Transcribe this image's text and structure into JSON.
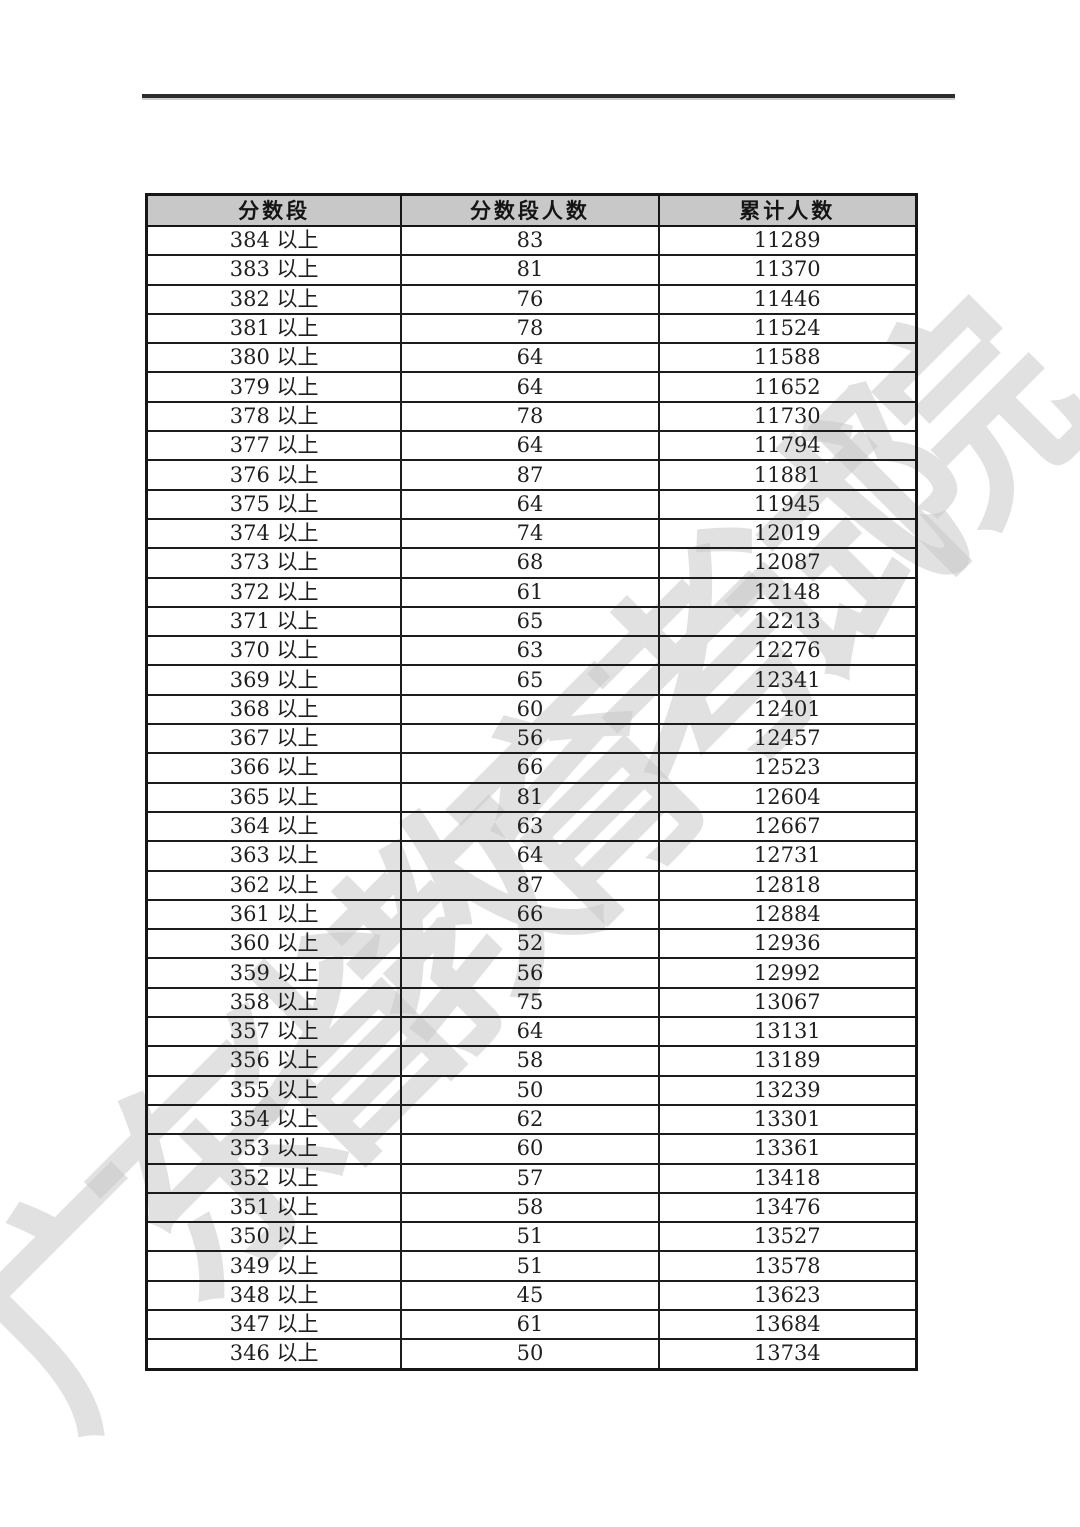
{
  "page": {
    "watermark": "广东省教育考试院"
  },
  "colors": {
    "header_bg": "#c8c8c8",
    "table_border": "#1c1c1c",
    "top_rule": "#2d2d2d",
    "watermark": "#c8c8c8"
  },
  "table": {
    "headers": [
      "分数段",
      "分数段人数",
      "累计人数"
    ],
    "rows": [
      [
        "384 以上",
        "83",
        "11289"
      ],
      [
        "383 以上",
        "81",
        "11370"
      ],
      [
        "382 以上",
        "76",
        "11446"
      ],
      [
        "381 以上",
        "78",
        "11524"
      ],
      [
        "380 以上",
        "64",
        "11588"
      ],
      [
        "379 以上",
        "64",
        "11652"
      ],
      [
        "378 以上",
        "78",
        "11730"
      ],
      [
        "377 以上",
        "64",
        "11794"
      ],
      [
        "376 以上",
        "87",
        "11881"
      ],
      [
        "375 以上",
        "64",
        "11945"
      ],
      [
        "374 以上",
        "74",
        "12019"
      ],
      [
        "373 以上",
        "68",
        "12087"
      ],
      [
        "372 以上",
        "61",
        "12148"
      ],
      [
        "371 以上",
        "65",
        "12213"
      ],
      [
        "370 以上",
        "63",
        "12276"
      ],
      [
        "369 以上",
        "65",
        "12341"
      ],
      [
        "368 以上",
        "60",
        "12401"
      ],
      [
        "367 以上",
        "56",
        "12457"
      ],
      [
        "366 以上",
        "66",
        "12523"
      ],
      [
        "365 以上",
        "81",
        "12604"
      ],
      [
        "364 以上",
        "63",
        "12667"
      ],
      [
        "363 以上",
        "64",
        "12731"
      ],
      [
        "362 以上",
        "87",
        "12818"
      ],
      [
        "361 以上",
        "66",
        "12884"
      ],
      [
        "360 以上",
        "52",
        "12936"
      ],
      [
        "359 以上",
        "56",
        "12992"
      ],
      [
        "358 以上",
        "75",
        "13067"
      ],
      [
        "357 以上",
        "64",
        "13131"
      ],
      [
        "356 以上",
        "58",
        "13189"
      ],
      [
        "355 以上",
        "50",
        "13239"
      ],
      [
        "354 以上",
        "62",
        "13301"
      ],
      [
        "353 以上",
        "60",
        "13361"
      ],
      [
        "352 以上",
        "57",
        "13418"
      ],
      [
        "351 以上",
        "58",
        "13476"
      ],
      [
        "350 以上",
        "51",
        "13527"
      ],
      [
        "349 以上",
        "51",
        "13578"
      ],
      [
        "348 以上",
        "45",
        "13623"
      ],
      [
        "347 以上",
        "61",
        "13684"
      ],
      [
        "346 以上",
        "50",
        "13734"
      ]
    ]
  }
}
